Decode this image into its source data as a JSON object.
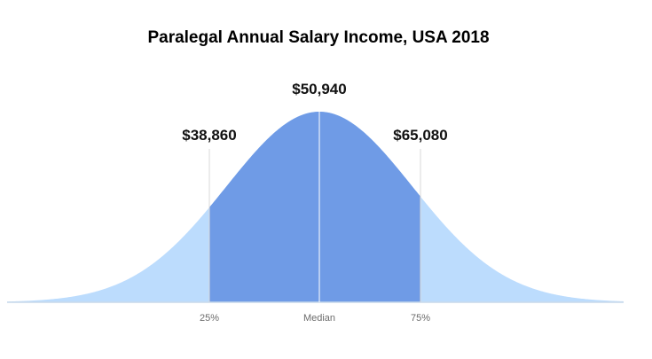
{
  "chart_data": {
    "type": "area",
    "title": "Paralegal Annual Salary Income, USA 2018",
    "xlabel": "",
    "ylabel": "",
    "markers": [
      {
        "tick_label": "25%",
        "value_label": "$38,860",
        "value": 38860
      },
      {
        "tick_label": "Median",
        "value_label": "$50,940",
        "value": 50940
      },
      {
        "tick_label": "75%",
        "value_label": "$65,080",
        "value": 65080
      }
    ],
    "grid": false,
    "legend": "none",
    "colors": {
      "tails": "#bcdcfd",
      "center": "#6f9be6",
      "marker_lines": "#d8d8d8",
      "median_line": "#ffffff",
      "baseline": "#c9d9ea"
    }
  }
}
